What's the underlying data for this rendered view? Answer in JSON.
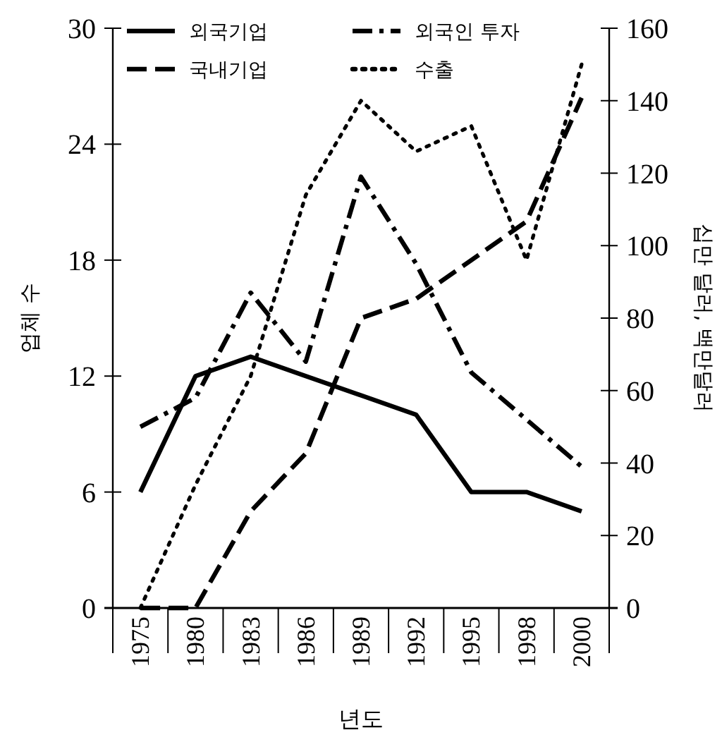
{
  "chart_data": {
    "type": "line",
    "xlabel": "년도",
    "ylabel": "업체 수",
    "y2label": "십만 달러, 백만달러",
    "categories": [
      "1975",
      "1980",
      "1983",
      "1986",
      "1989",
      "1992",
      "1995",
      "1998",
      "2000"
    ],
    "ylim": [
      0,
      30
    ],
    "yticks": [
      0,
      6,
      12,
      18,
      24,
      30
    ],
    "y2lim": [
      0,
      160
    ],
    "y2ticks": [
      0,
      20,
      40,
      60,
      80,
      100,
      120,
      140,
      160
    ],
    "legend": "top",
    "grid": false,
    "marker": "none",
    "series": [
      {
        "name": "외국기업",
        "color": "#000000",
        "line_style": "solid",
        "values": [
          6,
          12,
          13,
          12,
          11,
          10,
          6,
          6,
          5
        ]
      },
      {
        "name": "외국인 투자",
        "color": "#000000",
        "line_style": "dashdot",
        "axis": "y2",
        "values": [
          50,
          58,
          87,
          68,
          119,
          95,
          65,
          52,
          39
        ]
      },
      {
        "name": "국내기업",
        "color": "#000000",
        "line_style": "dashed",
        "values": [
          0,
          0,
          5,
          8,
          15,
          16,
          18,
          20,
          26.4
        ]
      },
      {
        "name": "수출",
        "color": "#000000",
        "line_style": "dotted",
        "axis": "y2",
        "values": [
          0,
          34,
          64,
          114,
          140,
          126,
          133,
          96,
          150
        ]
      }
    ]
  }
}
